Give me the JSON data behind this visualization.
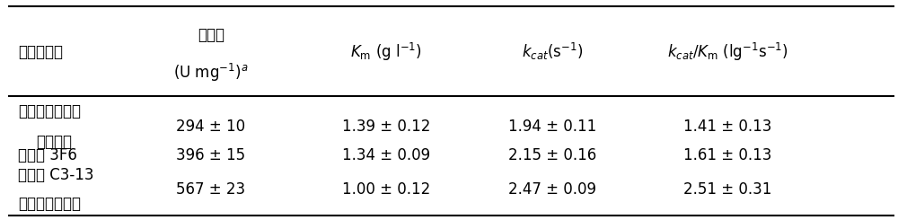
{
  "col_headers_zh": [
    "酶蛋白样品",
    "比活力",
    "(U mg⁻¹)ᵃ",
    ""
  ],
  "col2_header": "$K_{m}$ (g l$^{-1}$)",
  "col3_header": "$k_{cat}$ (s$^{-1}$)",
  "col4_header": "$k_{cat}/K_{m}$ (lg$^{-1}$s$^{-1}$)",
  "rows": [
    {
      "col0_line1": "野生型酶（突变",
      "col0_line2": "前酶液）",
      "col1": "294 ± 10",
      "col2": "1.39 ± 0.12",
      "col3": "1.94 ± 0.11",
      "col4": "1.41 ± 0.13"
    },
    {
      "col0_line1": "突变体 3F6",
      "col0_line2": "",
      "col1": "396 ± 15",
      "col2": "1.34 ± 0.09",
      "col3": "2.15 ± 0.16",
      "col4": "1.61 ± 0.13"
    },
    {
      "col0_line1": "突变体 C3-13",
      "col0_line2": "（突变后酶液）",
      "col1": "567 ± 23",
      "col2": "1.00 ± 0.12",
      "col3": "2.47 ± 0.09",
      "col4": "2.51 ± 0.31"
    }
  ],
  "background_color": "#ffffff",
  "text_color": "#000000",
  "font_size": 12,
  "header_font_size": 12
}
